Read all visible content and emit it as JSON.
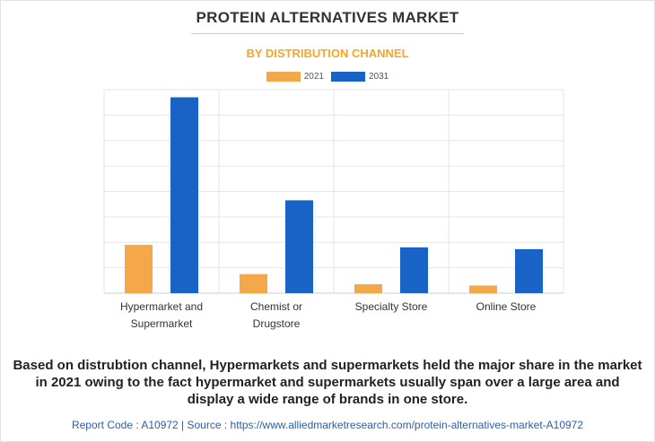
{
  "chart_data": {
    "type": "bar",
    "title": "PROTEIN ALTERNATIVES MARKET",
    "subtitle": "BY DISTRIBUTION CHANNEL",
    "categories": [
      [
        "Hypermarket and",
        "Supermarket"
      ],
      [
        "Chemist or",
        "Drugstore"
      ],
      [
        "Specialty Store"
      ],
      [
        "Online Store"
      ]
    ],
    "series": [
      {
        "name": "2021",
        "color": "#f5a84a",
        "values": [
          19,
          7.5,
          3.5,
          3
        ]
      },
      {
        "name": "2031",
        "color": "#1a63c6",
        "values": [
          77,
          36.5,
          18,
          17.3
        ]
      }
    ],
    "ylim": [
      0,
      80
    ],
    "grid": true,
    "legend_position": "top-center",
    "xlabel": "",
    "ylabel": ""
  },
  "caption": "Based on distrubtion channel, Hypermarkets and supermarkets held the major share in the market in 2021 owing to the fact hypermarket and supermarkets usually span over a large area and display a wide range of brands in one store.",
  "footer": "Report Code : A10972  |  Source : https://www.alliedmarketresearch.com/protein-alternatives-market-A10972"
}
